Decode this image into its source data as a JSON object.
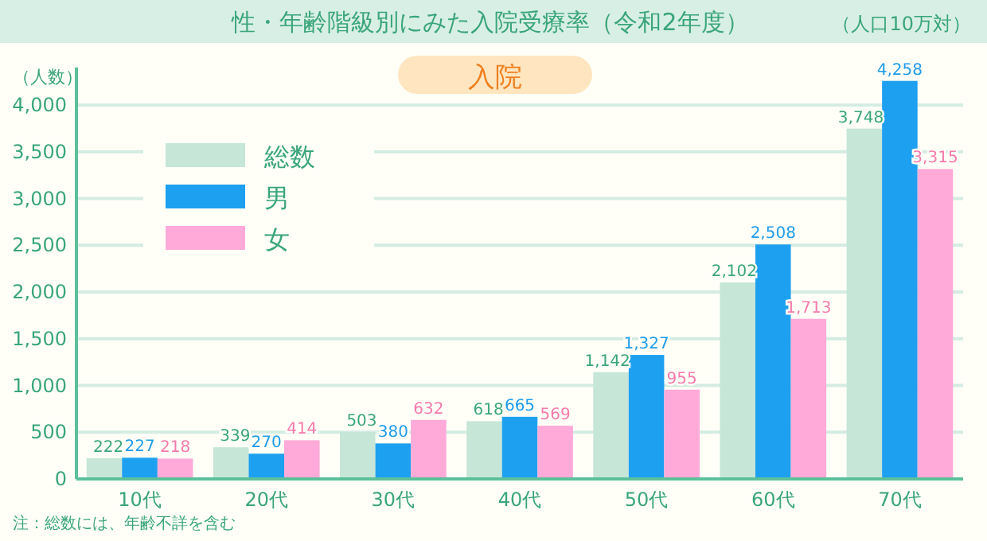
{
  "chart_data": {
    "type": "bar",
    "title": "性・年齢階級別にみた入院受療率（令和2年度）",
    "subtitle": "入院",
    "ylabel": "（人数）",
    "annotations": [
      "（人口10万対）",
      "注：総数には、年齢不詳を含む"
    ],
    "categories": [
      "10代",
      "20代",
      "30代",
      "40代",
      "50代",
      "60代",
      "70代"
    ],
    "series": [
      {
        "name": "総数",
        "color": "#c6e6d8",
        "values": [
          222,
          339,
          503,
          618,
          1142,
          2102,
          3748
        ],
        "value_labels": [
          "222",
          "339",
          "503",
          "618",
          "1,142",
          "2,102",
          "3,748"
        ]
      },
      {
        "name": "男",
        "color": "#1ea0f0",
        "values": [
          227,
          270,
          380,
          665,
          1327,
          2508,
          4258
        ],
        "value_labels": [
          "227",
          "270",
          "380",
          "665",
          "1,327",
          "2,508",
          "4,258"
        ]
      },
      {
        "name": "女",
        "color": "#ffaad8",
        "values": [
          218,
          414,
          632,
          569,
          955,
          1713,
          3315
        ],
        "value_labels": [
          "218",
          "414",
          "632",
          "569",
          "955",
          "1,713",
          "3,315"
        ]
      }
    ],
    "ylim": [
      0,
      4300
    ],
    "yticks": [
      0,
      {
        "value": 500,
        "label": "500"
      },
      {
        "value": 1000,
        "label": "1,000"
      },
      {
        "value": 1500,
        "label": "1,500"
      },
      {
        "value": 2000,
        "label": "2,000"
      },
      {
        "value": 2500,
        "label": "2,500"
      },
      {
        "value": 3000,
        "label": "3,000"
      },
      {
        "value": 3500,
        "label": "3,500"
      },
      {
        "value": 4000,
        "label": "4,000"
      }
    ],
    "grid": "y",
    "legend": "top left"
  }
}
